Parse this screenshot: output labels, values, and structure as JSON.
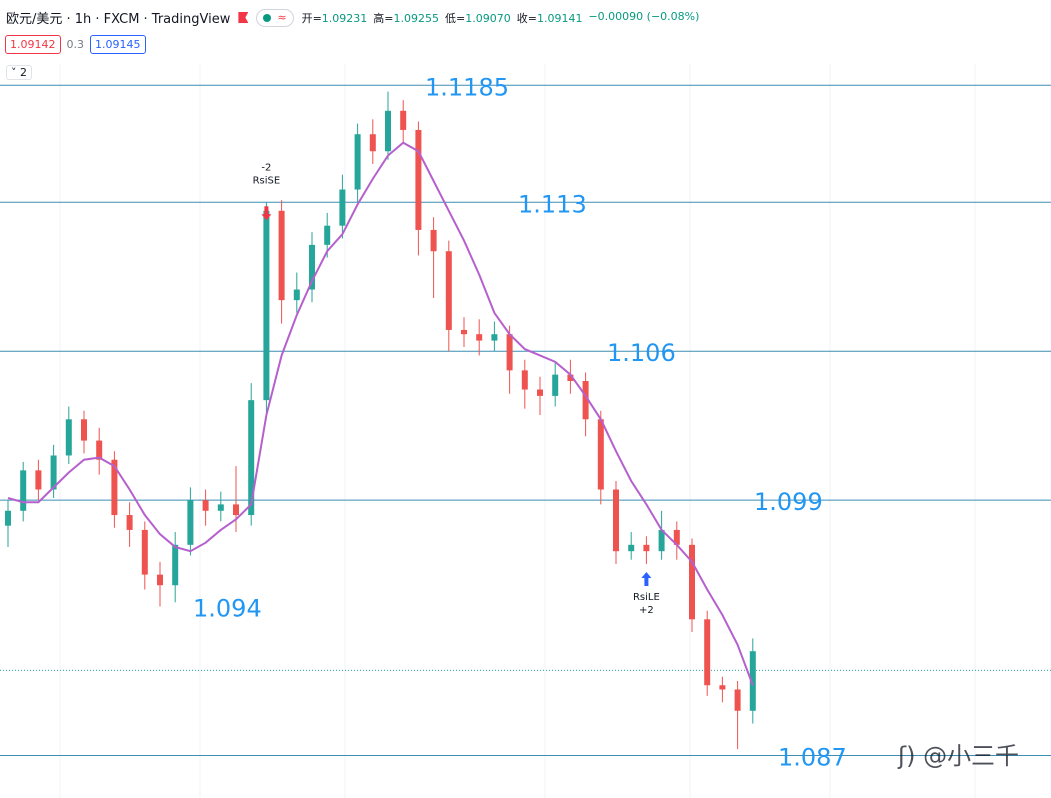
{
  "header": {
    "symbol": "欧元/美元 · 1h · FXCM · TradingView",
    "ohlc": [
      {
        "k": "开=",
        "v": "1.09231"
      },
      {
        "k": "高=",
        "v": "1.09255"
      },
      {
        "k": "低=",
        "v": "1.09070"
      },
      {
        "k": "收=",
        "v": "1.09141"
      }
    ],
    "change": "−0.00090 (−0.08%)",
    "sell": "1.09142",
    "spread": "0.3",
    "buy": "1.09145",
    "indicators": "2"
  },
  "watermark": "@小三千",
  "chart_data": {
    "type": "candlestick",
    "ylim": [
      1.085,
      1.1195
    ],
    "up_color": "#26a69a",
    "down_color": "#ef5350",
    "ma_color": "#b660cd",
    "level_color": "#3b8eb4",
    "level_label_color": "#2196f3",
    "open": [
      1.0978,
      1.0985,
      1.1004,
      1.0995,
      1.1011,
      1.1028,
      1.1018,
      1.1009,
      1.0983,
      1.0976,
      1.0955,
      1.095,
      1.0969,
      1.099,
      1.0985,
      1.0988,
      1.0983,
      1.1037,
      1.1126,
      1.1084,
      1.1089,
      1.111,
      1.1119,
      1.1136,
      1.1162,
      1.1154,
      1.1173,
      1.1164,
      1.1117,
      1.1107,
      1.107,
      1.1068,
      1.1065,
      1.1068,
      1.1051,
      1.1042,
      1.1039,
      1.1049,
      1.1046,
      1.1028,
      1.0995,
      1.0966,
      1.0969,
      1.0966,
      1.0976,
      1.0969,
      1.0934,
      1.0903,
      1.0901,
      1.0891
    ],
    "high": [
      1.099,
      1.1008,
      1.1009,
      1.1016,
      1.1034,
      1.1032,
      1.1024,
      1.1013,
      1.0989,
      1.098,
      1.0961,
      1.0975,
      1.0996,
      1.0995,
      1.0994,
      1.1006,
      1.1045,
      1.113,
      1.1131,
      1.1097,
      1.1116,
      1.1125,
      1.1143,
      1.1167,
      1.1169,
      1.1182,
      1.1178,
      1.1168,
      1.1123,
      1.1112,
      1.1076,
      1.1075,
      1.1074,
      1.1072,
      1.1056,
      1.1048,
      1.1055,
      1.1056,
      1.105,
      1.1032,
      1.0999,
      1.0975,
      1.0973,
      1.0985,
      1.098,
      1.0972,
      1.0938,
      1.0907,
      1.0905,
      1.0925
    ],
    "low": [
      1.0968,
      1.098,
      1.099,
      1.0991,
      1.1007,
      1.1012,
      1.1002,
      1.0977,
      1.0968,
      1.0948,
      1.094,
      1.0942,
      1.0964,
      1.0978,
      1.098,
      1.0975,
      1.0978,
      1.103,
      1.1073,
      1.1078,
      1.1083,
      1.1104,
      1.1113,
      1.113,
      1.1148,
      1.115,
      1.1158,
      1.1105,
      1.1085,
      1.106,
      1.1062,
      1.1058,
      1.106,
      1.104,
      1.1033,
      1.103,
      1.1034,
      1.104,
      1.102,
      1.0988,
      1.096,
      1.0962,
      1.096,
      1.0962,
      1.0962,
      1.0928,
      1.0898,
      1.0895,
      1.0873,
      1.0885
    ],
    "close": [
      1.0985,
      1.1004,
      1.0995,
      1.1011,
      1.1028,
      1.1018,
      1.1009,
      1.0983,
      1.0976,
      1.0955,
      1.095,
      1.0969,
      1.099,
      1.0985,
      1.0988,
      1.0983,
      1.1037,
      1.1126,
      1.1084,
      1.1089,
      1.111,
      1.1119,
      1.1136,
      1.1162,
      1.1154,
      1.1173,
      1.1164,
      1.1117,
      1.1107,
      1.107,
      1.1068,
      1.1065,
      1.1068,
      1.1051,
      1.1042,
      1.1039,
      1.1049,
      1.1046,
      1.1028,
      1.0995,
      1.0966,
      1.0969,
      1.0966,
      1.0976,
      1.0969,
      1.0934,
      1.0903,
      1.0901,
      1.0891,
      1.0919
    ],
    "ma": [
      1.0991,
      1.0989,
      1.0989,
      1.0996,
      1.1003,
      1.1009,
      1.101,
      1.1006,
      1.0995,
      1.0983,
      1.0974,
      1.0968,
      1.0966,
      1.097,
      1.0976,
      1.0981,
      1.0988,
      1.103,
      1.1058,
      1.1077,
      1.1093,
      1.1107,
      1.1115,
      1.1129,
      1.1141,
      1.1152,
      1.1158,
      1.1154,
      1.114,
      1.1126,
      1.1112,
      1.1096,
      1.1078,
      1.1068,
      1.1061,
      1.1058,
      1.1055,
      1.1049,
      1.1039,
      1.1028,
      1.1013,
      1.0999,
      1.0988,
      1.0976,
      1.0969,
      1.0961,
      1.0948,
      1.0936,
      1.0922,
      1.0903
    ],
    "levels": [
      {
        "value": 1.1185,
        "line": true
      },
      {
        "value": 1.113,
        "line": true
      },
      {
        "value": 1.106,
        "line": true
      },
      {
        "value": 1.099,
        "line": true
      },
      {
        "value": 1.094,
        "line": false
      },
      {
        "value": 1.087,
        "line": true
      }
    ],
    "last_price": 1.091,
    "signals": [
      {
        "qty": "-2",
        "label": "RsiSE",
        "side": "short"
      },
      {
        "qty": "+2",
        "label": "RsiLE",
        "side": "long"
      }
    ]
  }
}
